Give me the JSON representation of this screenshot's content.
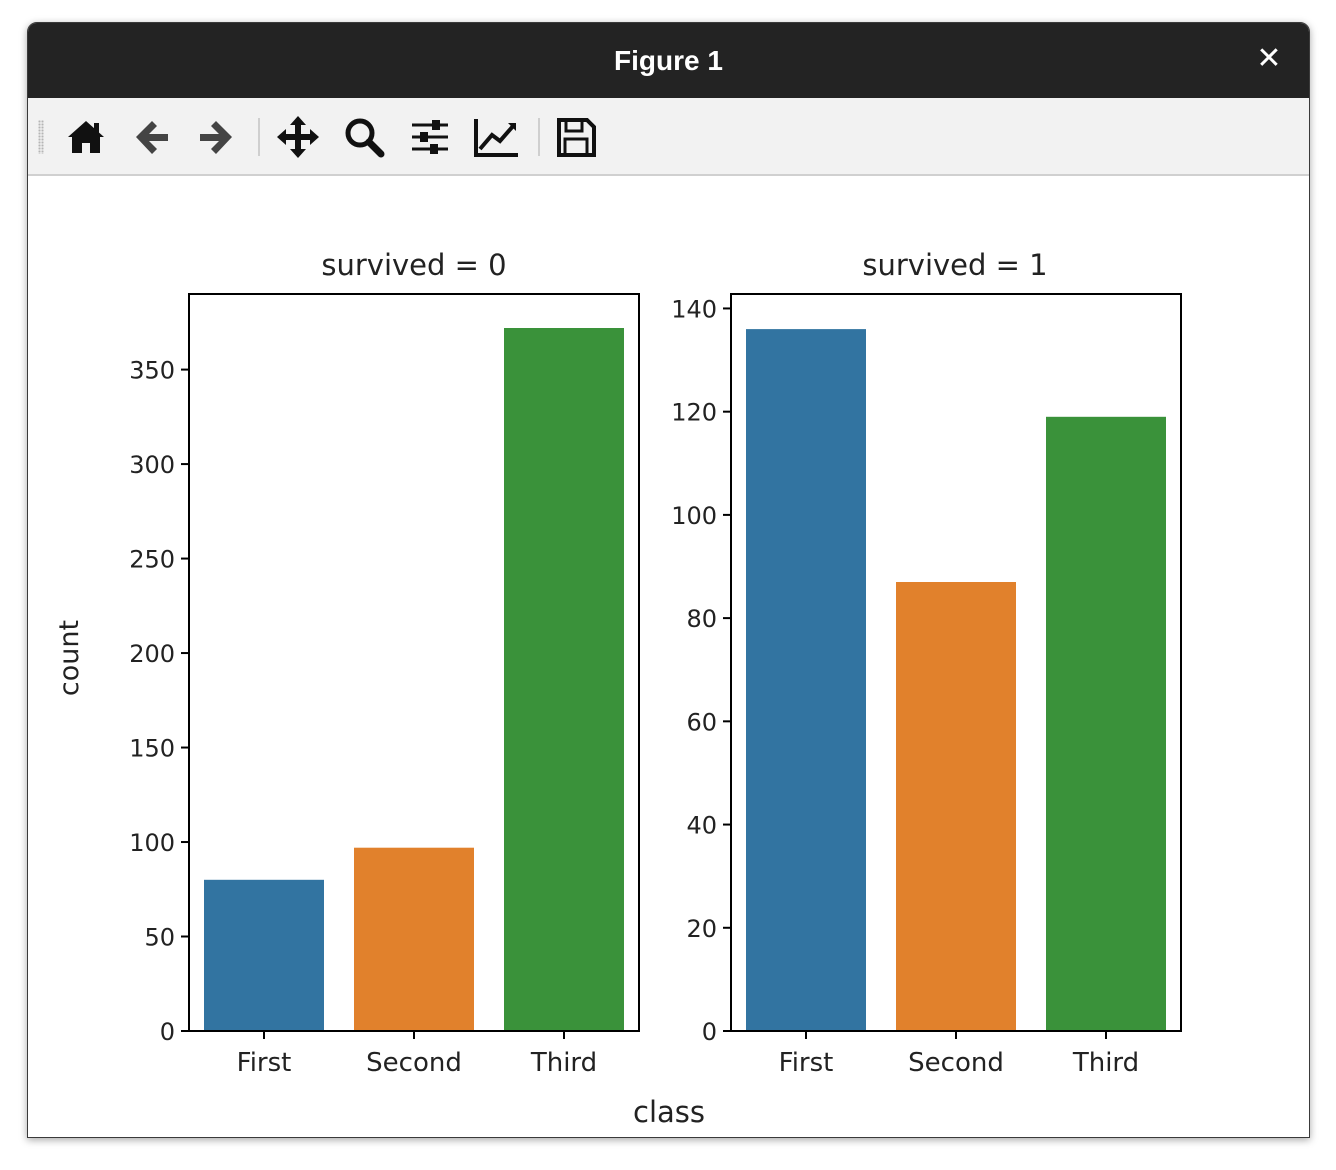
{
  "window": {
    "title": "Figure 1",
    "close_glyph": "✕"
  },
  "toolbar": {
    "buttons": [
      {
        "name": "home-icon"
      },
      {
        "name": "back-arrow-icon"
      },
      {
        "name": "forward-arrow-icon"
      },
      {
        "name": "pan-move-icon"
      },
      {
        "name": "zoom-magnifier-icon"
      },
      {
        "name": "configure-subplots-icon"
      },
      {
        "name": "edit-axis-lines-icon"
      },
      {
        "name": "save-floppy-icon"
      }
    ]
  },
  "chart_data": {
    "type": "bar",
    "xlabel": "class",
    "ylabel": "count",
    "categories": [
      "First",
      "Second",
      "Third"
    ],
    "colors": [
      "#3274a1",
      "#e1812c",
      "#3a923a"
    ],
    "grid": false,
    "panels": [
      {
        "title": "survived = 0",
        "values": [
          80,
          97,
          372
        ],
        "ylim": [
          0,
          390
        ],
        "yticks": [
          0,
          50,
          100,
          150,
          200,
          250,
          300,
          350
        ]
      },
      {
        "title": "survived = 1",
        "values": [
          136,
          87,
          119
        ],
        "ylim": [
          0,
          142.8
        ],
        "yticks": [
          0,
          20,
          40,
          60,
          80,
          100,
          120,
          140
        ]
      }
    ]
  }
}
